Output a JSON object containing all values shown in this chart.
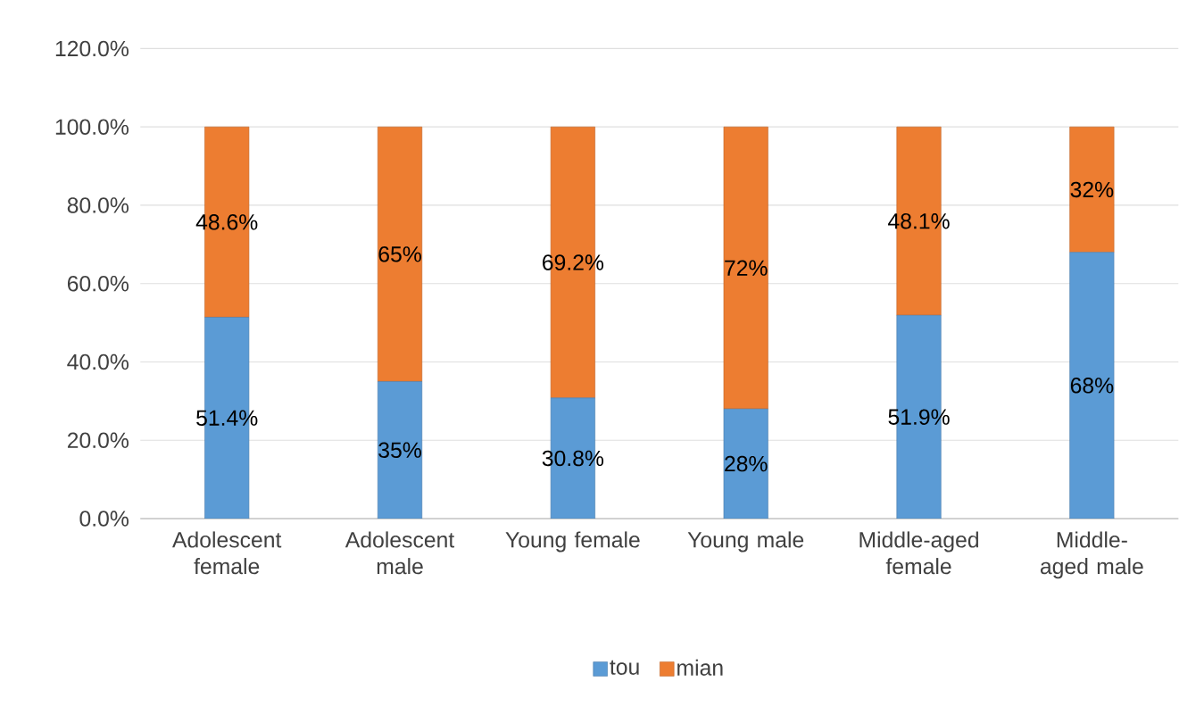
{
  "chart_data": {
    "type": "bar",
    "stacked": true,
    "categories": [
      "Adolescent female",
      "Adolescent male",
      "Young female",
      "Young male",
      "Middle-aged female",
      "Middle-aged male"
    ],
    "series": [
      {
        "name": "tou",
        "color": "#5b9bd5",
        "values": [
          51.4,
          35,
          30.8,
          28,
          51.9,
          68
        ],
        "value_labels": [
          "51.4%",
          "35%",
          "30.8%",
          "28%",
          "51.9%",
          "68%"
        ]
      },
      {
        "name": "mian",
        "color": "#ed7d31",
        "values": [
          48.6,
          65,
          69.2,
          72,
          48.1,
          32
        ],
        "value_labels": [
          "48.6%",
          "65%",
          "69.2%",
          "72%",
          "48.1%",
          "32%"
        ]
      }
    ],
    "ylim": [
      0,
      120
    ],
    "yticks": [
      {
        "value": 0,
        "label": "0.0%"
      },
      {
        "value": 20,
        "label": "20.0%"
      },
      {
        "value": 40,
        "label": "40.0%"
      },
      {
        "value": 60,
        "label": "60.0%"
      },
      {
        "value": 80,
        "label": "80.0%"
      },
      {
        "value": 100,
        "label": "100.0%"
      },
      {
        "value": 120,
        "label": "120.0%"
      }
    ],
    "grid": "y",
    "legend": "bottom"
  }
}
